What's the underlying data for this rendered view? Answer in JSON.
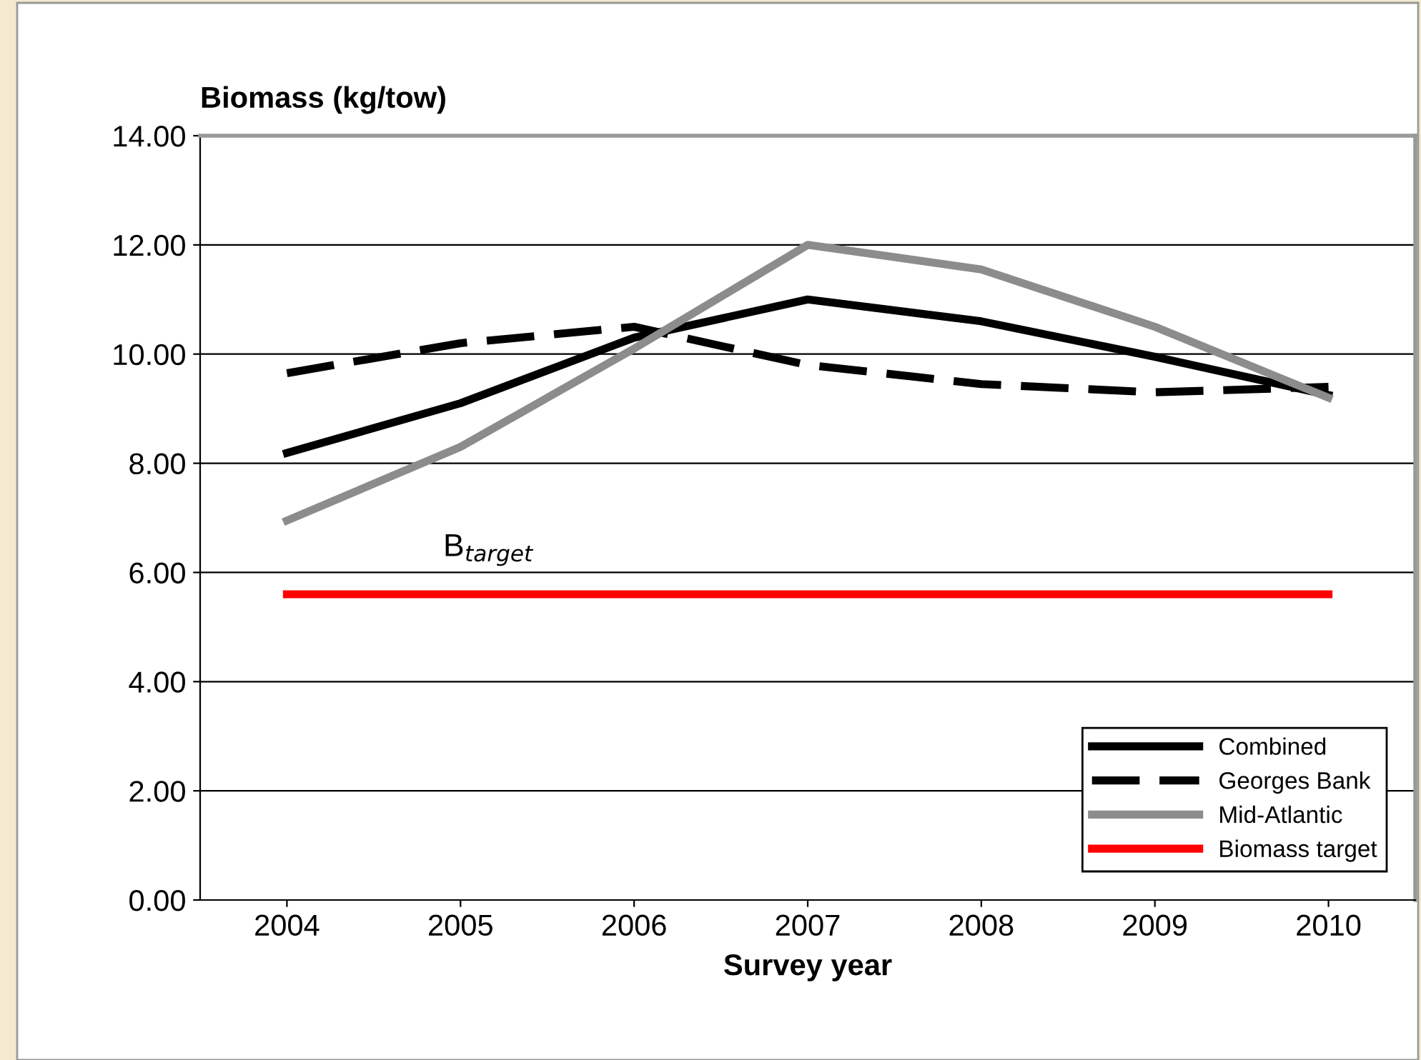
{
  "chart_data": {
    "type": "line",
    "ylabel": "Biomass (kg/tow)",
    "xlabel": "Survey year",
    "categories": [
      "2004",
      "2005",
      "2006",
      "2007",
      "2008",
      "2009",
      "2010"
    ],
    "series": [
      {
        "name": "Combined",
        "color": "#000000",
        "line_style": "solid",
        "values": [
          8.19,
          9.1,
          10.3,
          11.0,
          10.6,
          9.95,
          9.25
        ]
      },
      {
        "name": "Georges Bank",
        "color": "#000000",
        "line_style": "dashed",
        "values": [
          9.65,
          10.2,
          10.5,
          9.8,
          9.45,
          9.3,
          9.4
        ]
      },
      {
        "name": "Mid-Atlantic",
        "color": "#8c8c8c",
        "line_style": "solid",
        "values": [
          6.95,
          8.3,
          10.1,
          12.0,
          11.55,
          10.5,
          9.2
        ]
      },
      {
        "name": "Biomass target",
        "color": "#ff0000",
        "line_style": "solid",
        "values": [
          5.6,
          5.6,
          5.6,
          5.6,
          5.6,
          5.6,
          5.6
        ]
      }
    ],
    "annotations": [
      "B$_{target}$"
    ],
    "ylim": [
      0,
      14
    ],
    "yticks": [
      {
        "value": 0,
        "label": "0.00"
      },
      {
        "value": 2,
        "label": "2.00"
      },
      {
        "value": 4,
        "label": "4.00"
      },
      {
        "value": 6,
        "label": "6.00"
      },
      {
        "value": 8,
        "label": "8.00"
      },
      {
        "value": 10,
        "label": "10.00"
      },
      {
        "value": 12,
        "label": "12.00"
      },
      {
        "value": 14,
        "label": "14.00"
      }
    ],
    "grid": "y",
    "legend": "bottom right",
    "marker": "none"
  }
}
